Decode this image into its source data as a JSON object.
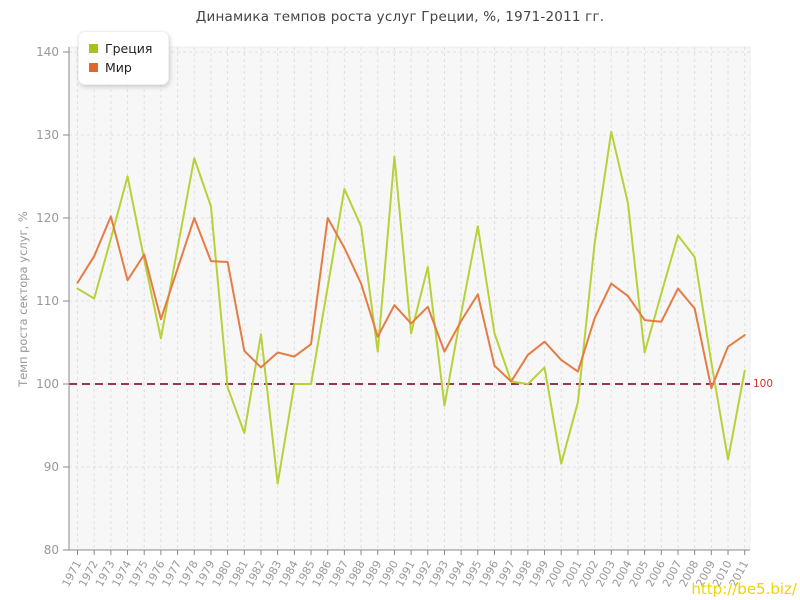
{
  "title": "Динамика темпов роста услуг Греции, %, 1971-2011 гг.",
  "y_axis_title": "Темп роста сектора услуг, %",
  "legend": [
    {
      "label": "Греция",
      "color": "#a3c31e"
    },
    {
      "label": "Мир",
      "color": "#e0662b"
    }
  ],
  "reference_line": {
    "value": 100,
    "label": "100",
    "line_color": "#96394f",
    "label_color": "#cc3b2a"
  },
  "watermark": {
    "text": "http://be5.biz/",
    "color": "#f0d405"
  },
  "colors": {
    "plot_background": "#f7f7f7",
    "gridline": "#e0e0e0",
    "axis": "#888888",
    "tick_label": "#999999",
    "greece_line": "#b7d239",
    "world_line": "#e57c46"
  },
  "chart_data": {
    "type": "line",
    "title": "Динамика темпов роста услуг Греции, %, 1971-2011 гг.",
    "xlabel": "",
    "ylabel": "Темп роста сектора услуг, %",
    "ylim": [
      80,
      140
    ],
    "y_ticks": [
      80,
      90,
      100,
      110,
      120,
      130,
      140
    ],
    "grid": "dashed",
    "legend_position": "top-left",
    "x": [
      1971,
      1972,
      1973,
      1974,
      1975,
      1976,
      1977,
      1978,
      1979,
      1980,
      1981,
      1982,
      1983,
      1984,
      1985,
      1986,
      1987,
      1988,
      1989,
      1990,
      1991,
      1992,
      1993,
      1994,
      1995,
      1996,
      1997,
      1998,
      1999,
      2000,
      2001,
      2002,
      2003,
      2004,
      2005,
      2006,
      2007,
      2008,
      2009,
      2010,
      2011
    ],
    "series": [
      {
        "name": "Греция",
        "color": "#b7d239",
        "values": [
          111.5,
          110.3,
          117.5,
          125.0,
          115.0,
          105.5,
          116.4,
          127.2,
          121.4,
          99.6,
          94.1,
          106.0,
          88.0,
          100.0,
          100.0,
          111.7,
          123.5,
          119.0,
          103.9,
          127.4,
          106.1,
          114.1,
          97.4,
          108.5,
          119.0,
          106.1,
          100.3,
          100.0,
          102.0,
          90.4,
          97.8,
          116.9,
          130.4,
          121.8,
          103.8,
          110.9,
          117.9,
          115.3,
          102.6,
          90.9,
          101.6
        ]
      },
      {
        "name": "Мир",
        "color": "#e57c46",
        "values": [
          112.2,
          115.4,
          120.2,
          112.5,
          115.6,
          107.8,
          113.9,
          120.0,
          114.8,
          114.7,
          104.0,
          102.0,
          103.8,
          103.3,
          104.8,
          120.0,
          116.4,
          112.1,
          105.7,
          109.5,
          107.3,
          109.3,
          103.9,
          107.6,
          110.8,
          102.2,
          100.3,
          103.5,
          105.1,
          102.9,
          101.5,
          107.9,
          112.1,
          110.6,
          107.7,
          107.5,
          111.5,
          109.1,
          99.5,
          104.5,
          105.9
        ]
      }
    ]
  }
}
